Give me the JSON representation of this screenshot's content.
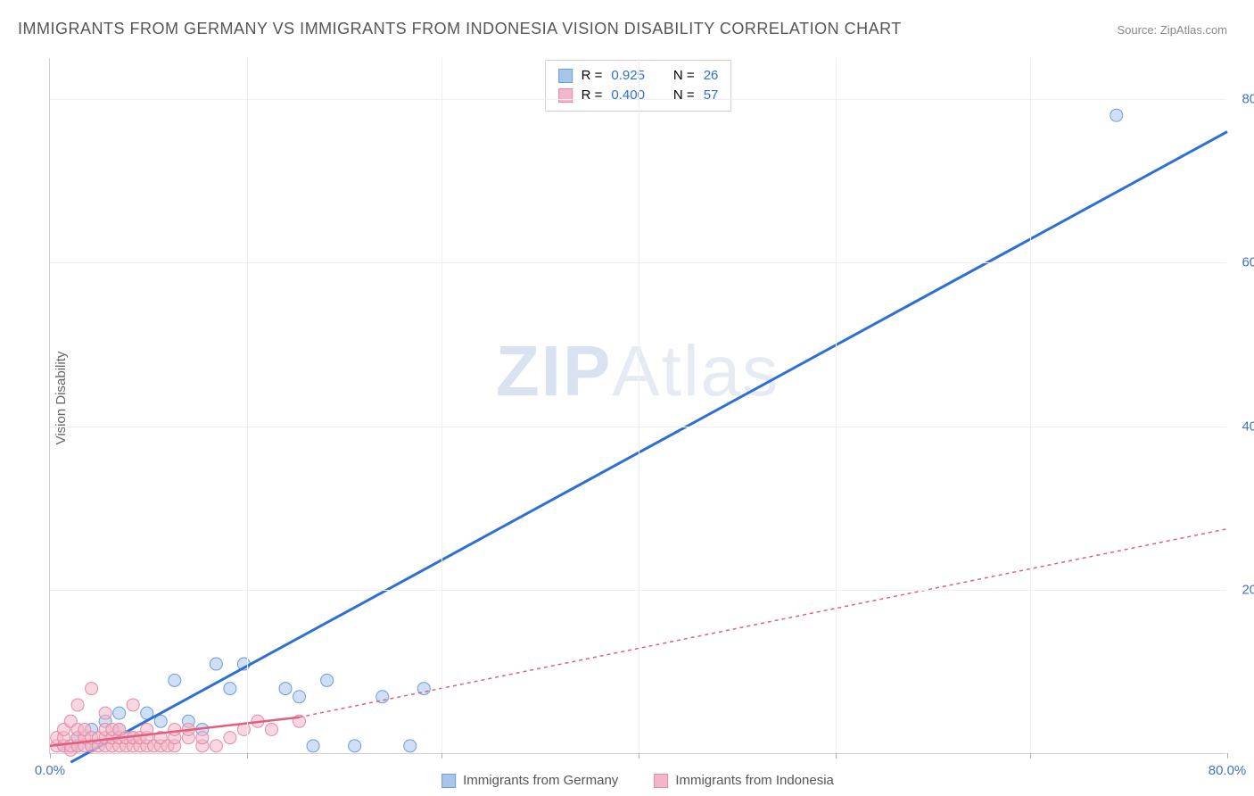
{
  "title": "IMMIGRANTS FROM GERMANY VS IMMIGRANTS FROM INDONESIA VISION DISABILITY CORRELATION CHART",
  "source": "Source: ZipAtlas.com",
  "ylabel": "Vision Disability",
  "watermark_bold": "ZIP",
  "watermark_light": "Atlas",
  "chart": {
    "type": "scatter",
    "xlim": [
      0,
      85
    ],
    "ylim": [
      0,
      85
    ],
    "x_tick_positions": [
      0,
      14.2,
      28.3,
      42.5,
      56.7,
      70.8,
      85
    ],
    "y_tick_positions": [
      20,
      40,
      60,
      80
    ],
    "x_tick_labels_visible": {
      "0": "0.0%",
      "85": "80.0%"
    },
    "y_tick_labels_visible": {
      "20": "20.0%",
      "40": "40.0%",
      "60": "60.0%",
      "80": "80.0%"
    },
    "background_color": "#ffffff",
    "grid_color": "#f0f0f0",
    "axis_color": "#d0d0d0",
    "tick_label_color": "#4472c4",
    "axis_label_color": "#666666",
    "series": [
      {
        "name": "Immigrants from Germany",
        "marker_color_fill": "#a8c5ec",
        "marker_color_stroke": "#6f9dd9",
        "marker_opacity": 0.55,
        "marker_radius": 7,
        "line_color": "#2e6fd6",
        "line_width": 3,
        "line_dash": "none",
        "r_value": "0.925",
        "n_value": "26",
        "trend_start": [
          1.5,
          -1
        ],
        "trend_solid_end": [
          85,
          76
        ],
        "trend_dashed_end": null,
        "points": [
          [
            1,
            1
          ],
          [
            2,
            2
          ],
          [
            3,
            1
          ],
          [
            4,
            4
          ],
          [
            5,
            3
          ],
          [
            6,
            2
          ],
          [
            7,
            5
          ],
          [
            8,
            4
          ],
          [
            9,
            9
          ],
          [
            10,
            4
          ],
          [
            11,
            3
          ],
          [
            12,
            11
          ],
          [
            13,
            8
          ],
          [
            14,
            11
          ],
          [
            17,
            8
          ],
          [
            18,
            7
          ],
          [
            19,
            1
          ],
          [
            20,
            9
          ],
          [
            22,
            1
          ],
          [
            24,
            7
          ],
          [
            26,
            1
          ],
          [
            27,
            8
          ],
          [
            5,
            5
          ],
          [
            3,
            3
          ],
          [
            2,
            1
          ],
          [
            77,
            78
          ]
        ]
      },
      {
        "name": "Immigrants from Indonesia",
        "marker_color_fill": "#f2b6c6",
        "marker_color_stroke": "#e68aa5",
        "marker_opacity": 0.55,
        "marker_radius": 7,
        "line_color": "#e45d7e",
        "line_width": 2.5,
        "line_dash": "4,4",
        "r_value": "0.400",
        "n_value": "57",
        "trend_start": [
          0,
          1
        ],
        "trend_solid_end": [
          18,
          4.5
        ],
        "trend_dashed_end": [
          85,
          27.5
        ],
        "points": [
          [
            0.5,
            1
          ],
          [
            0.5,
            2
          ],
          [
            1,
            1
          ],
          [
            1,
            2
          ],
          [
            1,
            3
          ],
          [
            1.5,
            0.5
          ],
          [
            1.5,
            1
          ],
          [
            1.5,
            4
          ],
          [
            2,
            1
          ],
          [
            2,
            2
          ],
          [
            2,
            3
          ],
          [
            2,
            6
          ],
          [
            2.5,
            1
          ],
          [
            2.5,
            2
          ],
          [
            2.5,
            3
          ],
          [
            3,
            1
          ],
          [
            3,
            2
          ],
          [
            3,
            8
          ],
          [
            3.5,
            1
          ],
          [
            3.5,
            2
          ],
          [
            4,
            1
          ],
          [
            4,
            2
          ],
          [
            4,
            3
          ],
          [
            4,
            5
          ],
          [
            4.5,
            1
          ],
          [
            4.5,
            2
          ],
          [
            4.5,
            3
          ],
          [
            5,
            1
          ],
          [
            5,
            2
          ],
          [
            5,
            3
          ],
          [
            5.5,
            1
          ],
          [
            5.5,
            2
          ],
          [
            6,
            1
          ],
          [
            6,
            2
          ],
          [
            6,
            6
          ],
          [
            6.5,
            1
          ],
          [
            6.5,
            2
          ],
          [
            7,
            1
          ],
          [
            7,
            2
          ],
          [
            7,
            3
          ],
          [
            7.5,
            1
          ],
          [
            8,
            1
          ],
          [
            8,
            2
          ],
          [
            8.5,
            1
          ],
          [
            9,
            1
          ],
          [
            9,
            2
          ],
          [
            9,
            3
          ],
          [
            10,
            2
          ],
          [
            10,
            3
          ],
          [
            11,
            1
          ],
          [
            11,
            2
          ],
          [
            12,
            1
          ],
          [
            13,
            2
          ],
          [
            14,
            3
          ],
          [
            15,
            4
          ],
          [
            16,
            3
          ],
          [
            18,
            4
          ]
        ]
      }
    ]
  },
  "legend_top": {
    "r_label": "R  =",
    "n_label": "N  ="
  },
  "legend_bottom_labels": [
    "Immigrants from Germany",
    "Immigrants from Indonesia"
  ]
}
